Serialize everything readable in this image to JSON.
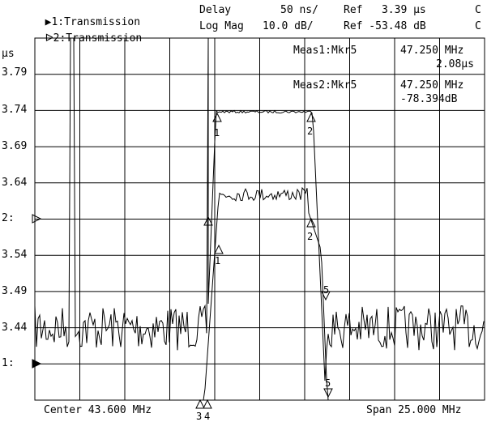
{
  "header": {
    "ch1_marker": "▶",
    "ch1_label": "1:Transmission",
    "ch1_format": "Delay",
    "ch1_scale": "50 ns/",
    "ch1_ref": "Ref   3.39 µs",
    "ch1_flag": "C",
    "ch2_marker": "ᐅ",
    "ch2_label": "2:Transmission",
    "ch2_format": "Log Mag",
    "ch2_scale": "10.0 dB/",
    "ch2_ref": "Ref -53.48 dB",
    "ch2_flag": "C"
  },
  "y_axis": {
    "unit": "µs",
    "ticks": [
      "3.79",
      "3.74",
      "3.69",
      "3.64",
      "2:",
      "3.54",
      "3.49",
      "3.44",
      "1:"
    ]
  },
  "measurements": [
    {
      "label": "Meas1:Mkr5",
      "freq": "47.250 MHz",
      "value": "2.08µs"
    },
    {
      "label": "Meas2:Mkr5",
      "freq": "47.250 MHz",
      "value": "-78.394dB"
    }
  ],
  "footer": {
    "center": "Center 43.600 MHz",
    "span": "Span 25.000 MHz"
  },
  "markers": {
    "ch1": [
      "1",
      "2",
      "3",
      "4",
      "5"
    ],
    "ch2": [
      "1",
      "2",
      "3",
      "4",
      "5"
    ]
  },
  "colors": {
    "trace": "#000000",
    "grid": "#000000",
    "background": "#ffffff"
  }
}
